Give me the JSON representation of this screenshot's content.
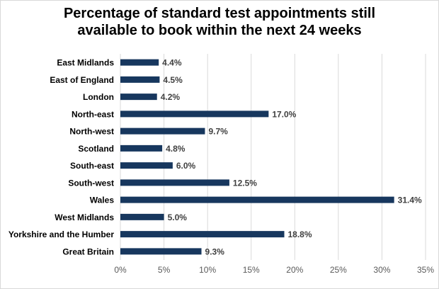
{
  "chart_data": {
    "type": "bar",
    "orientation": "horizontal",
    "title": [
      "Percentage of standard test appointments still",
      "available to book within the next 24 weeks"
    ],
    "categories": [
      "East Midlands",
      "East of England",
      "London",
      "North-east",
      "North-west",
      "Scotland",
      "South-east",
      "South-west",
      "Wales",
      "West Midlands",
      "Yorkshire and the Humber",
      "Great Britain"
    ],
    "values": [
      4.4,
      4.5,
      4.2,
      17.0,
      9.7,
      4.8,
      6.0,
      12.5,
      31.4,
      5.0,
      18.8,
      9.3
    ],
    "value_labels": [
      "4.4%",
      "4.5%",
      "4.2%",
      "17.0%",
      "9.7%",
      "4.8%",
      "6.0%",
      "12.5%",
      "31.4%",
      "5.0%",
      "18.8%",
      "9.3%"
    ],
    "xlim": [
      0,
      35
    ],
    "xticks": [
      0,
      5,
      10,
      15,
      20,
      25,
      30,
      35
    ],
    "xtick_labels": [
      "0%",
      "5%",
      "10%",
      "15%",
      "20%",
      "25%",
      "30%",
      "35%"
    ],
    "grid": "vertical",
    "legend": "none",
    "bar_color": "#17375e",
    "xlabel": "",
    "ylabel": ""
  }
}
